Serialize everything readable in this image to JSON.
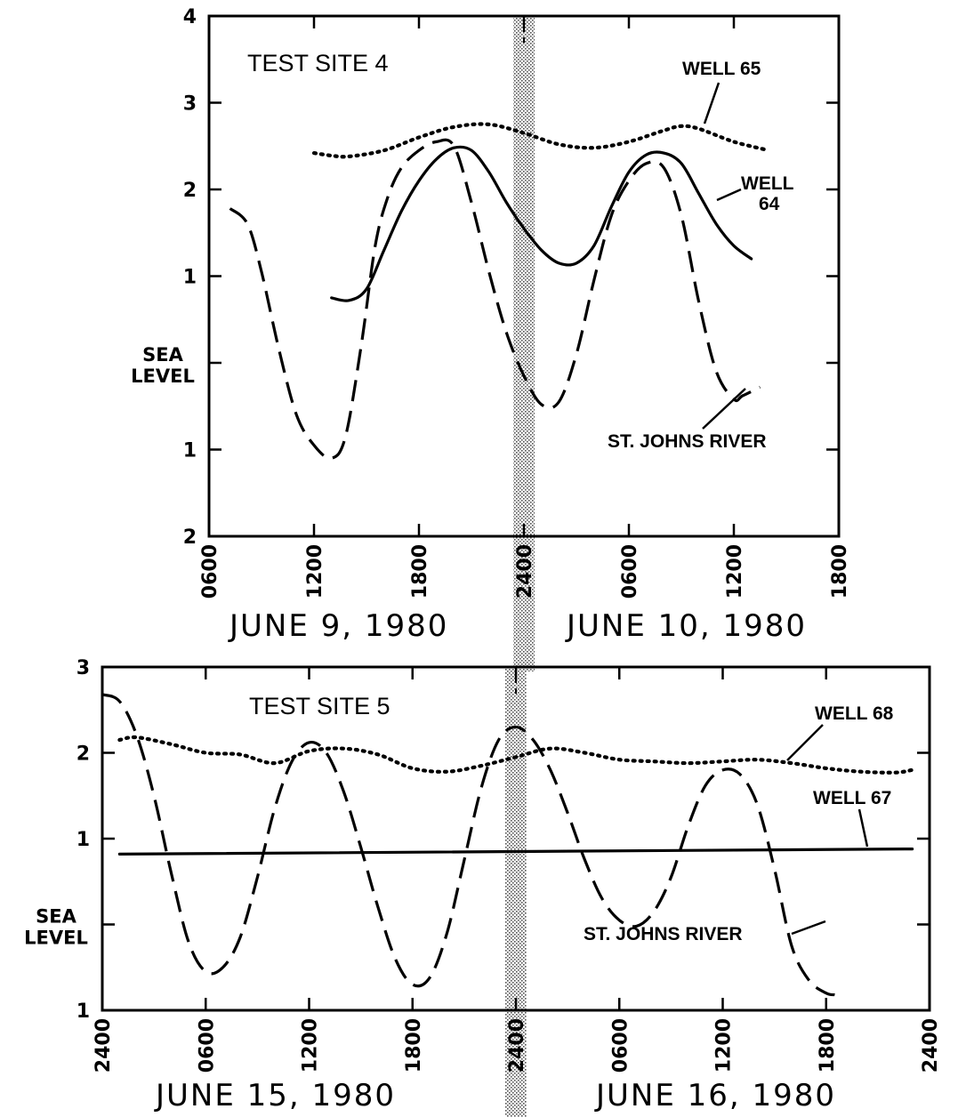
{
  "chart_data": [
    {
      "type": "line",
      "title": "TEST SITE 4",
      "xlabel_left": "JUNE 9, 1980",
      "xlabel_right": "JUNE 10, 1980",
      "y_tick_labels": [
        "4",
        "3",
        "2",
        "1",
        "SEA\nLEVEL",
        "1",
        "2"
      ],
      "y_values": [
        4,
        3,
        2,
        1,
        0,
        -1,
        -2
      ],
      "ylim": [
        -2,
        4
      ],
      "x_units": "hours from 0000 June 9, 1980",
      "x_tick_labels": [
        "0600",
        "1200",
        "1800",
        "2400",
        "0600",
        "1200",
        "1800"
      ],
      "x_tick_hours": [
        6,
        12,
        18,
        24,
        30,
        36,
        42
      ],
      "xlim": [
        6,
        42
      ],
      "midnight_band_hour": 24,
      "series": [
        {
          "name": "WELL 65",
          "style": "dotted",
          "x": [
            12,
            13,
            14,
            16,
            18,
            20,
            22,
            24,
            26,
            28,
            30,
            32,
            33,
            34,
            36,
            38
          ],
          "y": [
            2.42,
            2.39,
            2.38,
            2.45,
            2.6,
            2.72,
            2.75,
            2.65,
            2.52,
            2.48,
            2.55,
            2.68,
            2.73,
            2.7,
            2.55,
            2.45
          ]
        },
        {
          "name": "WELL 64",
          "style": "solid",
          "x": [
            13,
            14,
            15,
            16,
            17,
            18,
            19,
            20,
            21,
            22,
            23,
            24,
            25,
            26,
            27,
            28,
            29,
            30,
            31,
            32,
            33,
            34,
            35,
            36,
            37
          ],
          "y": [
            0.75,
            0.72,
            0.85,
            1.3,
            1.75,
            2.1,
            2.35,
            2.48,
            2.45,
            2.2,
            1.85,
            1.55,
            1.3,
            1.15,
            1.15,
            1.35,
            1.8,
            2.2,
            2.4,
            2.42,
            2.3,
            1.95,
            1.6,
            1.35,
            1.2
          ]
        },
        {
          "name": "ST. JOHNS RIVER",
          "style": "dashed",
          "x": [
            7.2,
            8.2,
            9,
            10,
            11,
            12,
            13,
            13.8,
            14.7,
            15.5,
            16.2,
            17,
            18,
            19,
            20,
            21,
            22,
            23,
            24,
            25,
            26,
            27,
            28,
            29,
            30,
            31,
            32,
            33,
            34,
            35,
            36,
            36.5,
            37.5
          ],
          "y": [
            1.78,
            1.6,
            1.05,
            0.15,
            -0.6,
            -0.95,
            -1.1,
            -0.85,
            0.2,
            1.35,
            1.9,
            2.25,
            2.45,
            2.55,
            2.5,
            1.85,
            1.05,
            0.35,
            -0.15,
            -0.48,
            -0.45,
            0.1,
            0.95,
            1.7,
            2.1,
            2.3,
            2.25,
            1.7,
            0.7,
            -0.1,
            -0.42,
            -0.38,
            -0.28
          ]
        }
      ],
      "annotations": [
        "WELL 65",
        "WELL",
        "64",
        "ST. JOHNS RIVER"
      ]
    },
    {
      "type": "line",
      "title": "TEST SITE 5",
      "xlabel_left": "JUNE 15, 1980",
      "xlabel_right": "JUNE 16, 1980",
      "y_tick_labels": [
        "3",
        "2",
        "1",
        "SEA\nLEVEL",
        "1"
      ],
      "y_values": [
        3,
        2,
        1,
        0,
        -1
      ],
      "ylim": [
        -1,
        3
      ],
      "x_units": "hours from 0000 June 15, 1980",
      "x_tick_labels": [
        "2400",
        "0600",
        "1200",
        "1800",
        "2400",
        "0600",
        "1200",
        "1800",
        "2400"
      ],
      "x_tick_hours": [
        0,
        6,
        12,
        18,
        24,
        30,
        36,
        42,
        48
      ],
      "xlim": [
        0,
        48
      ],
      "midnight_band_hour": 24,
      "series": [
        {
          "name": "WELL 68",
          "style": "dotted",
          "x": [
            1,
            2,
            4,
            6,
            8,
            10,
            12,
            14,
            16,
            18,
            20,
            22,
            24,
            26,
            28,
            30,
            32,
            34,
            36,
            38,
            40,
            42,
            44,
            46,
            47
          ],
          "y": [
            2.15,
            2.18,
            2.1,
            2.0,
            1.98,
            1.88,
            2.02,
            2.05,
            1.98,
            1.82,
            1.78,
            1.85,
            1.95,
            2.05,
            2.0,
            1.92,
            1.9,
            1.88,
            1.9,
            1.92,
            1.88,
            1.82,
            1.78,
            1.77,
            1.8
          ]
        },
        {
          "name": "WELL 67",
          "style": "solid",
          "x": [
            1,
            47
          ],
          "y": [
            0.82,
            0.88
          ]
        },
        {
          "name": "ST. JOHNS RIVER",
          "style": "dashed",
          "x": [
            0,
            1,
            2,
            3,
            4,
            5,
            6,
            7,
            8,
            9,
            10,
            11,
            12,
            13,
            14,
            15,
            16,
            17,
            18,
            19,
            20,
            21,
            22,
            23,
            24,
            25,
            26,
            27,
            28,
            29,
            30,
            31,
            32,
            33,
            34,
            35,
            36,
            37,
            38,
            39,
            40,
            41,
            42,
            42.5
          ],
          "y": [
            2.68,
            2.6,
            2.2,
            1.5,
            0.6,
            -0.2,
            -0.55,
            -0.5,
            -0.15,
            0.55,
            1.35,
            1.9,
            2.12,
            2.0,
            1.55,
            0.9,
            0.2,
            -0.4,
            -0.7,
            -0.62,
            -0.1,
            0.75,
            1.6,
            2.15,
            2.3,
            2.15,
            1.8,
            1.3,
            0.75,
            0.3,
            0.05,
            -0.02,
            0.15,
            0.55,
            1.15,
            1.62,
            1.8,
            1.75,
            1.4,
            0.65,
            -0.25,
            -0.65,
            -0.8,
            -0.82
          ]
        }
      ],
      "annotations": [
        "WELL 68",
        "WELL 67",
        "ST. JOHNS RIVER"
      ]
    }
  ]
}
